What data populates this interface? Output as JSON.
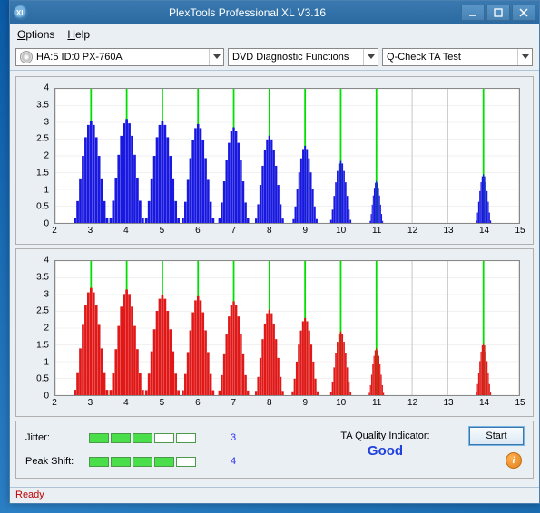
{
  "window": {
    "title": "PlexTools Professional XL V3.16",
    "icon_text": "XL"
  },
  "menu": {
    "options": "Options",
    "options_underline": "O",
    "help": "Help",
    "help_underline": "H"
  },
  "toolbar": {
    "device": "HA:5 ID:0  PX-760A",
    "function": "DVD Diagnostic Functions",
    "test": "Q-Check TA Test"
  },
  "charts": {
    "xmin": 2,
    "xmax": 15,
    "xticks": [
      2,
      3,
      4,
      5,
      6,
      7,
      8,
      9,
      10,
      11,
      12,
      13,
      14,
      15
    ],
    "ymin": 0,
    "ymax": 4,
    "yticks": [
      0,
      0.5,
      1,
      1.5,
      2,
      2.5,
      3,
      3.5,
      4
    ],
    "vlines_color": "#00e000",
    "vlines_at": [
      3,
      4,
      5,
      6,
      7,
      8,
      9,
      10,
      11,
      14
    ],
    "bar_halfbins": 6,
    "top": {
      "color": "#1818e0",
      "peaks": [
        {
          "x": 3,
          "h": 3.05,
          "w": 0.9
        },
        {
          "x": 4,
          "h": 3.1,
          "w": 0.9
        },
        {
          "x": 5,
          "h": 3.05,
          "w": 0.9
        },
        {
          "x": 6,
          "h": 2.95,
          "w": 0.85
        },
        {
          "x": 7,
          "h": 2.85,
          "w": 0.8
        },
        {
          "x": 8,
          "h": 2.6,
          "w": 0.75
        },
        {
          "x": 9,
          "h": 2.3,
          "w": 0.65
        },
        {
          "x": 10,
          "h": 1.85,
          "w": 0.55
        },
        {
          "x": 11,
          "h": 1.25,
          "w": 0.35
        },
        {
          "x": 14,
          "h": 1.45,
          "w": 0.4
        }
      ]
    },
    "bottom": {
      "color": "#e01818",
      "peaks": [
        {
          "x": 3,
          "h": 3.2,
          "w": 0.9
        },
        {
          "x": 4,
          "h": 3.15,
          "w": 0.9
        },
        {
          "x": 5,
          "h": 3.0,
          "w": 0.9
        },
        {
          "x": 6,
          "h": 2.95,
          "w": 0.85
        },
        {
          "x": 7,
          "h": 2.8,
          "w": 0.8
        },
        {
          "x": 8,
          "h": 2.55,
          "w": 0.75
        },
        {
          "x": 9,
          "h": 2.3,
          "w": 0.7
        },
        {
          "x": 10,
          "h": 1.9,
          "w": 0.55
        },
        {
          "x": 11,
          "h": 1.4,
          "w": 0.4
        },
        {
          "x": 14,
          "h": 1.55,
          "w": 0.4
        }
      ]
    }
  },
  "quality": {
    "jitter_label": "Jitter:",
    "jitter_value": "3",
    "jitter_filled": 3,
    "jitter_total": 5,
    "peakshift_label": "Peak Shift:",
    "peakshift_value": "4",
    "peakshift_filled": 4,
    "peakshift_total": 5,
    "indicator_label": "TA Quality Indicator:",
    "indicator_value": "Good",
    "start_label": "Start",
    "segment_on_color": "#4adf4a"
  },
  "status": {
    "text": "Ready",
    "color": "#c00000"
  }
}
